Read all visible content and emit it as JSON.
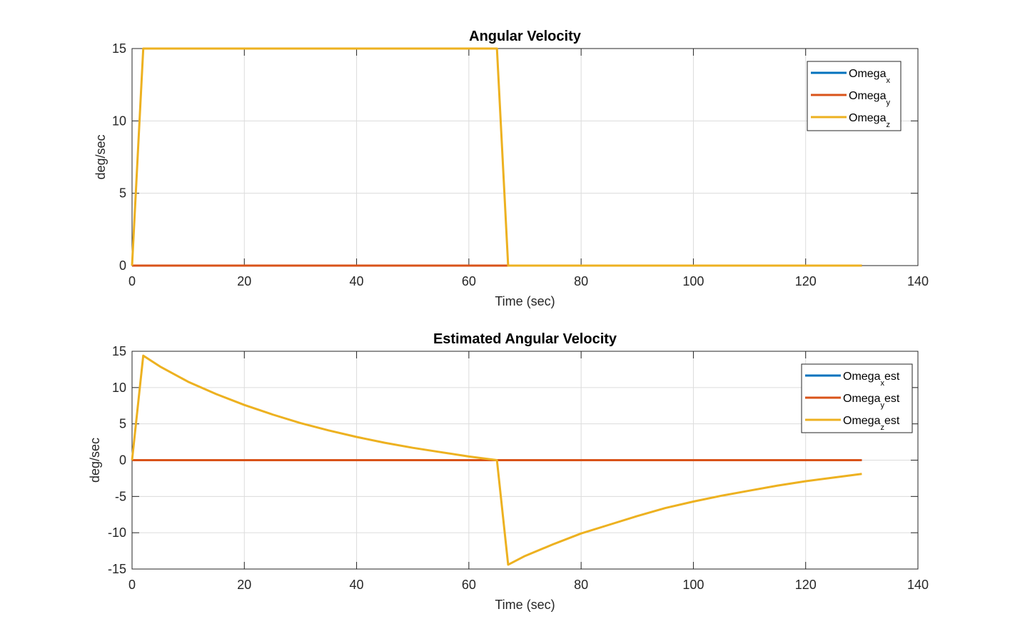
{
  "chart_data": [
    {
      "type": "line",
      "title": "Angular Velocity",
      "xlabel": "Time (sec)",
      "ylabel": "deg/sec",
      "xlim": [
        0,
        140
      ],
      "ylim": [
        0,
        15
      ],
      "xticks": [
        0,
        20,
        40,
        60,
        80,
        100,
        120,
        140
      ],
      "yticks": [
        0,
        5,
        10,
        15
      ],
      "grid": true,
      "legend_position": "top-right",
      "series": [
        {
          "name": "Omega",
          "subscript": "x",
          "color": "#0072BD",
          "x": [
            0,
            130
          ],
          "y": [
            0,
            0
          ]
        },
        {
          "name": "Omega",
          "subscript": "y",
          "color": "#D95319",
          "x": [
            0,
            130
          ],
          "y": [
            0,
            0
          ]
        },
        {
          "name": "Omega",
          "subscript": "z",
          "color": "#EDB120",
          "x": [
            0,
            2,
            65,
            67,
            130
          ],
          "y": [
            0,
            15,
            15,
            0,
            0
          ]
        }
      ]
    },
    {
      "type": "line",
      "title": "Estimated Angular Velocity",
      "xlabel": "Time (sec)",
      "ylabel": "deg/sec",
      "xlim": [
        0,
        140
      ],
      "ylim": [
        -15,
        15
      ],
      "xticks": [
        0,
        20,
        40,
        60,
        80,
        100,
        120,
        140
      ],
      "yticks": [
        -15,
        -10,
        -5,
        0,
        5,
        10,
        15
      ],
      "grid": true,
      "legend_position": "top-right",
      "series": [
        {
          "name": "Omega",
          "subscript": "x",
          "suffix": "est",
          "color": "#0072BD",
          "x": [
            0,
            130
          ],
          "y": [
            0,
            0
          ]
        },
        {
          "name": "Omega",
          "subscript": "y",
          "suffix": "est",
          "color": "#D95319",
          "x": [
            0,
            130
          ],
          "y": [
            0,
            0
          ]
        },
        {
          "name": "Omega",
          "subscript": "z",
          "suffix": "est",
          "color": "#EDB120",
          "x": [
            0,
            2,
            5,
            10,
            15,
            20,
            25,
            30,
            35,
            40,
            45,
            50,
            55,
            60,
            65,
            67,
            70,
            75,
            80,
            85,
            90,
            95,
            100,
            105,
            110,
            115,
            120,
            125,
            130
          ],
          "y": [
            0,
            14.4,
            12.9,
            10.8,
            9.1,
            7.6,
            6.3,
            5.1,
            4.1,
            3.2,
            2.4,
            1.7,
            1.1,
            0.5,
            0,
            -14.4,
            -13.2,
            -11.6,
            -10.1,
            -8.9,
            -7.7,
            -6.6,
            -5.7,
            -4.9,
            -4.2,
            -3.5,
            -2.9,
            -2.4,
            -1.9
          ]
        }
      ]
    }
  ]
}
